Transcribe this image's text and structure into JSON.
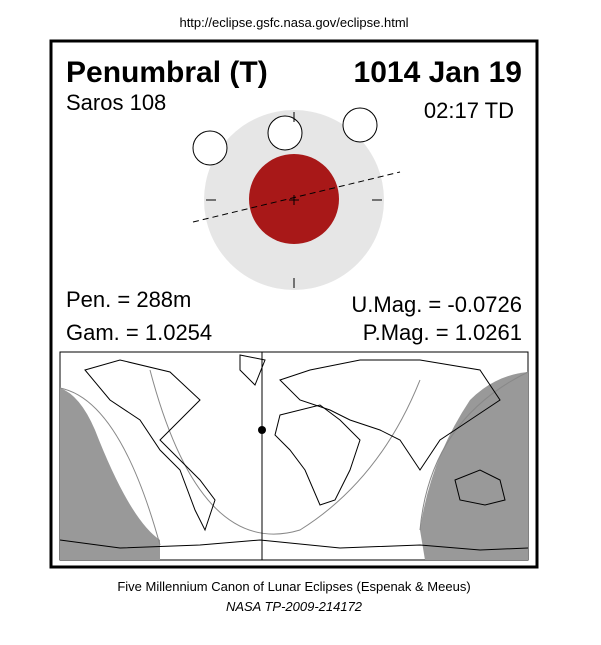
{
  "header": {
    "url": "http://eclipse.gsfc.nasa.gov/eclipse.html"
  },
  "eclipse": {
    "type": "Penumbral (T)",
    "date": "1014 Jan 19",
    "saros": "Saros 108",
    "time": "02:17 TD",
    "pen": "Pen. = 288m",
    "gam": "Gam. = 1.0254",
    "umag": "U.Mag. = -0.0726",
    "pmag": "P.Mag. = 1.0261"
  },
  "footer": {
    "line1": "Five Millennium Canon of Lunar Eclipses (Espenak & Meeus)",
    "line2": "NASA TP-2009-214172"
  }
}
